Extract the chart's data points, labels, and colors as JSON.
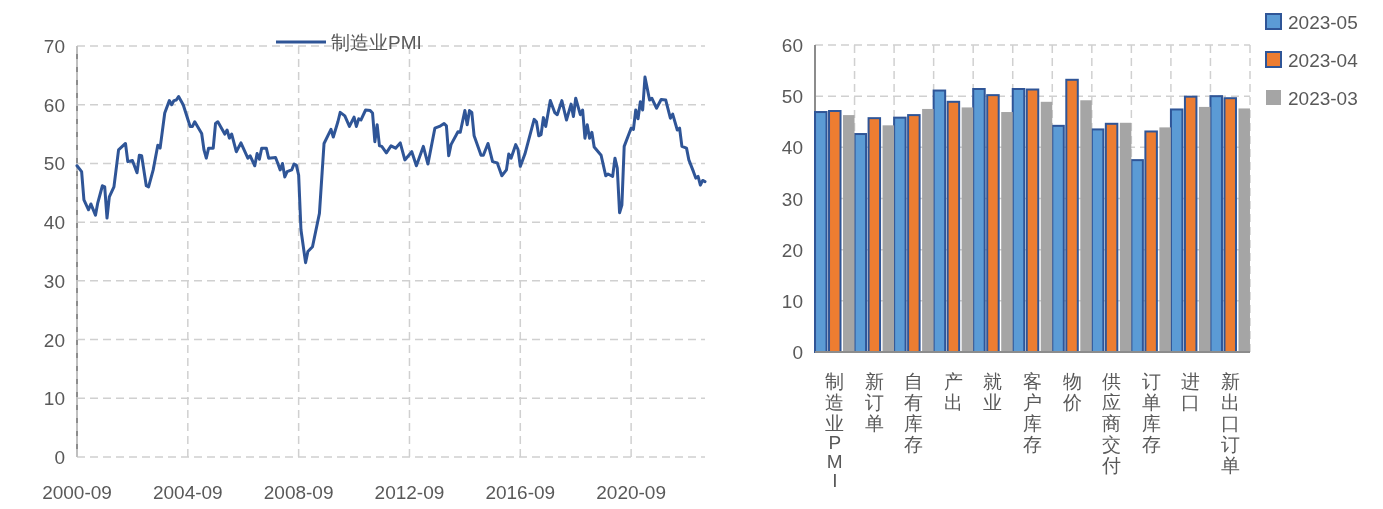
{
  "chart_data": [
    {
      "type": "line",
      "legend": "top",
      "grid": true,
      "line_style": "solid",
      "x": [
        "2000-09",
        "2000-11",
        "2000-12",
        "2001-02",
        "2001-03",
        "2001-05",
        "2001-06",
        "2001-08",
        "2001-09",
        "2001-10",
        "2001-11",
        "2002-01",
        "2002-03",
        "2002-06",
        "2002-07",
        "2002-09",
        "2002-11",
        "2002-12",
        "2003-01",
        "2003-03",
        "2003-04",
        "2003-06",
        "2003-08",
        "2003-09",
        "2003-11",
        "2004-01",
        "2004-02",
        "2004-03",
        "2004-04",
        "2004-05",
        "2004-07",
        "2004-10",
        "2004-11",
        "2004-12",
        "2005-03",
        "2005-04",
        "2005-05",
        "2005-06",
        "2005-08",
        "2005-09",
        "2005-10",
        "2006-01",
        "2006-02",
        "2006-03",
        "2006-04",
        "2006-06",
        "2006-08",
        "2006-11",
        "2006-12",
        "2007-02",
        "2007-03",
        "2007-04",
        "2007-05",
        "2007-07",
        "2007-08",
        "2007-11",
        "2007-12",
        "2008-01",
        "2008-02",
        "2008-03",
        "2008-04",
        "2008-06",
        "2008-07",
        "2008-08",
        "2008-09",
        "2008-10",
        "2008-12",
        "2009-01",
        "2009-03",
        "2009-06",
        "2009-08",
        "2009-11",
        "2009-12",
        "2010-02",
        "2010-03",
        "2010-05",
        "2010-07",
        "2010-09",
        "2010-10",
        "2010-11",
        "2010-12",
        "2011-02",
        "2011-04",
        "2011-05",
        "2011-06",
        "2011-07",
        "2011-08",
        "2011-09",
        "2011-11",
        "2012-01",
        "2012-03",
        "2012-05",
        "2012-07",
        "2012-10",
        "2012-12",
        "2013-03",
        "2013-05",
        "2013-08",
        "2013-10",
        "2013-12",
        "2014-01",
        "2014-02",
        "2014-03",
        "2014-06",
        "2014-07",
        "2014-09",
        "2014-10",
        "2014-11",
        "2014-12",
        "2015-01",
        "2015-04",
        "2015-05",
        "2015-07",
        "2015-09",
        "2015-11",
        "2016-01",
        "2016-03",
        "2016-04",
        "2016-05",
        "2016-07",
        "2016-08",
        "2016-09",
        "2016-11",
        "2017-03",
        "2017-04",
        "2017-05",
        "2017-06",
        "2017-07",
        "2017-08",
        "2017-10",
        "2017-12",
        "2018-01",
        "2018-03",
        "2018-05",
        "2018-07",
        "2018-08",
        "2018-09",
        "2018-11",
        "2018-12",
        "2019-01",
        "2019-02",
        "2019-03",
        "2019-04",
        "2019-05",
        "2019-08",
        "2019-10",
        "2019-11",
        "2020-01",
        "2020-02",
        "2020-03",
        "2020-04",
        "2020-05",
        "2020-06",
        "2020-09",
        "2020-10",
        "2020-11",
        "2020-12",
        "2021-01",
        "2021-02",
        "2021-03",
        "2021-05",
        "2021-06",
        "2021-08",
        "2021-10",
        "2021-12",
        "2022-02",
        "2022-03",
        "2022-05",
        "2022-06",
        "2022-07",
        "2022-09",
        "2022-10",
        "2022-12",
        "2023-01",
        "2023-02",
        "2023-03",
        "2023-04",
        "2023-05"
      ],
      "series": [
        {
          "name": "制造业PMI",
          "color": "#2f5597",
          "values": [
            49.6,
            48.6,
            43.8,
            42.1,
            43.1,
            41.2,
            43.3,
            46.2,
            46.0,
            40.7,
            44.3,
            46.0,
            52.3,
            53.4,
            50.3,
            50.5,
            48.4,
            51.4,
            51.3,
            46.2,
            46.0,
            48.9,
            53.1,
            52.6,
            58.6,
            60.7,
            60.0,
            60.7,
            60.8,
            61.4,
            60.0,
            56.3,
            56.3,
            57.1,
            55.1,
            52.3,
            50.9,
            52.6,
            52.6,
            56.8,
            57.1,
            55.0,
            55.7,
            54.3,
            55.0,
            52.0,
            53.5,
            50.9,
            51.3,
            49.6,
            51.7,
            50.7,
            52.6,
            52.6,
            50.9,
            51.0,
            50.0,
            48.9,
            50.0,
            47.7,
            48.6,
            48.9,
            49.9,
            49.7,
            48.0,
            38.7,
            33.1,
            35.0,
            35.8,
            41.5,
            53.4,
            55.8,
            54.5,
            57.1,
            58.7,
            58.1,
            56.3,
            57.9,
            56.3,
            57.6,
            57.4,
            59.1,
            59.0,
            58.6,
            53.7,
            56.6,
            53.0,
            52.9,
            51.8,
            53.0,
            52.6,
            53.5,
            50.6,
            52.0,
            49.6,
            52.9,
            49.9,
            56.0,
            56.3,
            56.8,
            56.4,
            51.3,
            53.2,
            55.4,
            55.3,
            59.0,
            56.6,
            59.0,
            58.7,
            54.7,
            51.4,
            51.4,
            53.4,
            50.3,
            50.1,
            47.9,
            48.9,
            51.6,
            50.9,
            53.2,
            52.4,
            49.5,
            51.6,
            57.5,
            57.1,
            54.7,
            54.9,
            57.8,
            56.3,
            60.7,
            58.6,
            58.3,
            60.7,
            57.4,
            60.1,
            58.0,
            61.1,
            58.3,
            59.1,
            54.3,
            56.6,
            54.3,
            55.3,
            52.8,
            51.4,
            47.9,
            48.2,
            47.8,
            50.9,
            49.2,
            41.6,
            42.9,
            52.9,
            56.0,
            55.8,
            59.1,
            57.6,
            60.5,
            59.1,
            64.7,
            60.8,
            61.1,
            59.4,
            60.9,
            60.8,
            57.7,
            58.4,
            55.7,
            56.0,
            52.9,
            52.6,
            50.6,
            48.6,
            47.5,
            47.8,
            46.3,
            47.1,
            46.9
          ]
        }
      ],
      "xlim": [
        "2000-09",
        "2023-05"
      ],
      "xticks": [
        "2000-09",
        "2004-09",
        "2008-09",
        "2012-09",
        "2016-09",
        "2020-09"
      ],
      "ylim": [
        0,
        70
      ],
      "yticks": [
        0,
        10,
        20,
        30,
        40,
        50,
        60,
        70
      ]
    },
    {
      "type": "bar",
      "legend": "top right",
      "grid": true,
      "categories": [
        "制造业PMI",
        "新订单",
        "自有库存",
        "产出",
        "就业",
        "客户库存",
        "物价",
        "供应商交付",
        "订单库存",
        "进口",
        "新出口订单"
      ],
      "series": [
        {
          "name": "2023-05",
          "color": "#5b9bd5",
          "values": [
            46.9,
            42.6,
            45.8,
            51.1,
            51.4,
            51.4,
            44.2,
            43.5,
            37.5,
            47.4,
            50.0
          ]
        },
        {
          "name": "2023-04",
          "color": "#ed7d31",
          "values": [
            47.1,
            45.7,
            46.3,
            48.9,
            50.2,
            51.3,
            53.2,
            44.6,
            43.1,
            49.9,
            49.6
          ]
        },
        {
          "name": "2023-03",
          "color": "#a5a5a5",
          "values": [
            46.3,
            44.3,
            47.5,
            47.8,
            46.9,
            48.9,
            49.2,
            44.8,
            43.9,
            47.9,
            47.6
          ]
        }
      ],
      "ylim": [
        0,
        60
      ],
      "yticks": [
        0,
        10,
        20,
        30,
        40,
        50,
        60
      ]
    }
  ]
}
